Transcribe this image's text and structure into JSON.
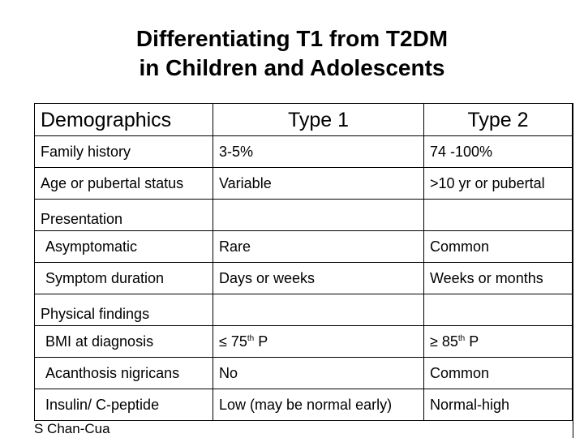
{
  "title": {
    "line1": "Differentiating T1 from T2DM",
    "line2": "in Children and Adolescents"
  },
  "table": {
    "headers": [
      "Demographics",
      "Type 1",
      "Type 2"
    ],
    "rows": [
      {
        "label": "Family history",
        "type1": "3-5%",
        "type2": "74 -100%"
      },
      {
        "label": "Age or pubertal status",
        "type1": "Variable",
        "type2": ">10 yr or pubertal"
      },
      {
        "label": "Presentation",
        "type1": "",
        "type2": ""
      },
      {
        "label": "Asymptomatic",
        "type1": "Rare",
        "type2": "Common"
      },
      {
        "label": "Symptom duration",
        "type1": "Days or weeks",
        "type2": "Weeks or months"
      },
      {
        "label": "Physical findings",
        "type1": "",
        "type2": ""
      },
      {
        "label": "BMI at diagnosis",
        "type1_pre": "≤ 75",
        "type1_sup": "th",
        "type1_post": " P",
        "type2_pre": "≥ 85",
        "type2_sup": "th",
        "type2_post": " P"
      },
      {
        "label": "Acanthosis nigricans",
        "type1": "No",
        "type2": "Common"
      },
      {
        "label": "Insulin/ C-peptide",
        "type1": "Low (may be normal early)",
        "type2": "Normal-high"
      }
    ]
  },
  "credit": "S Chan-Cua"
}
